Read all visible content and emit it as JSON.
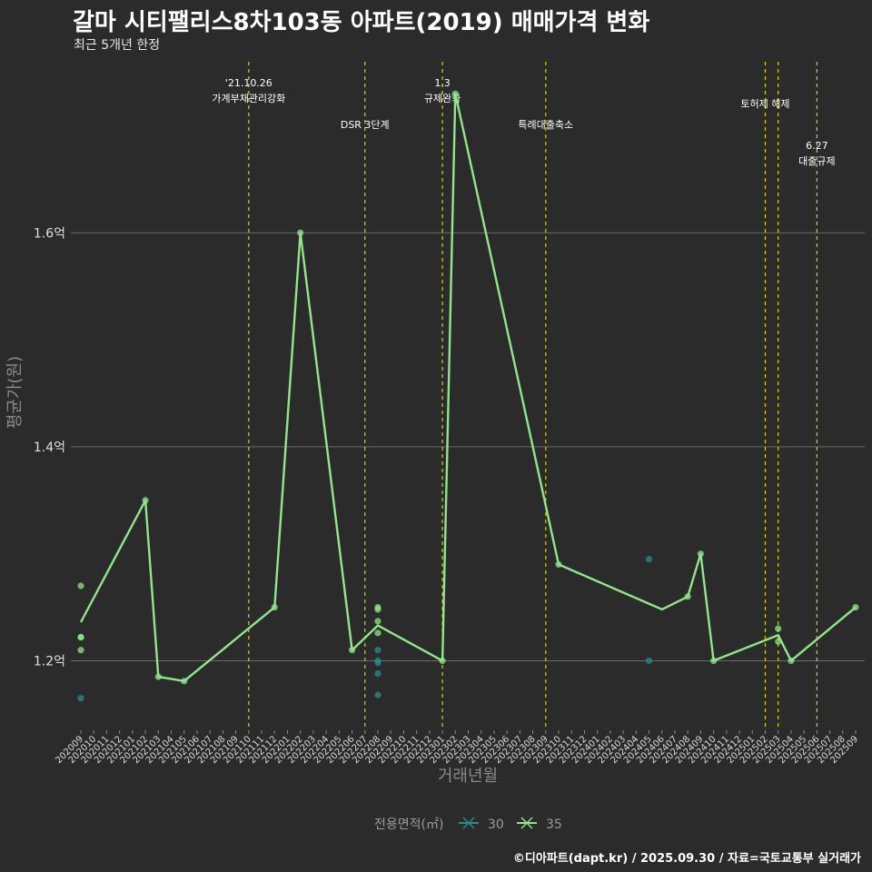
{
  "title": "갈마 시티팰리스8차103동 아파트(2019) 매매가격 변화",
  "subtitle": "최근 5개년 한정",
  "caption": "©디아파트(dapt.kr) / 2025.09.30 / 자료=국토교통부 실거래가",
  "chart_data": {
    "type": "line",
    "xlabel": "거래년월",
    "ylabel": "평균가(원)",
    "ylim": [
      1.135,
      1.765
    ],
    "y_ticks": [
      1.2,
      1.4,
      1.6
    ],
    "y_tick_labels": [
      "1.2억",
      "1.4억",
      "1.6억"
    ],
    "categories": [
      "202009",
      "202010",
      "202011",
      "202012",
      "202101",
      "202102",
      "202103",
      "202104",
      "202105",
      "202106",
      "202107",
      "202108",
      "202109",
      "202110",
      "202111",
      "202112",
      "202201",
      "202202",
      "202203",
      "202204",
      "202205",
      "202206",
      "202207",
      "202208",
      "202209",
      "202210",
      "202211",
      "202212",
      "202301",
      "202302",
      "202303",
      "202304",
      "202305",
      "202306",
      "202307",
      "202308",
      "202309",
      "202310",
      "202311",
      "202312",
      "202401",
      "202402",
      "202403",
      "202404",
      "202405",
      "202406",
      "202407",
      "202408",
      "202409",
      "202410",
      "202411",
      "202412",
      "202501",
      "202502",
      "202503",
      "202504",
      "202505",
      "202506",
      "202507",
      "202508",
      "202509"
    ],
    "legend_title": "전용면적(㎡)",
    "series": [
      {
        "name": "30",
        "color": "#2a8c8c",
        "points": [
          [
            "202009",
            1.165
          ],
          [
            "202208",
            1.21
          ],
          [
            "202208",
            1.2
          ],
          [
            "202208",
            1.198
          ],
          [
            "202208",
            1.188
          ],
          [
            "202208",
            1.168
          ],
          [
            "202405",
            1.295
          ],
          [
            "202405",
            1.2
          ]
        ],
        "line": []
      },
      {
        "name": "35",
        "color": "#90e68a",
        "points": [
          [
            "202009",
            1.27
          ],
          [
            "202009",
            1.222
          ],
          [
            "202009",
            1.222
          ],
          [
            "202009",
            1.21
          ],
          [
            "202102",
            1.35
          ],
          [
            "202103",
            1.185
          ],
          [
            "202105",
            1.181
          ],
          [
            "202112",
            1.25
          ],
          [
            "202202",
            1.6
          ],
          [
            "202206",
            1.21
          ],
          [
            "202208",
            1.25
          ],
          [
            "202208",
            1.248
          ],
          [
            "202208",
            1.237
          ],
          [
            "202208",
            1.226
          ],
          [
            "202301",
            1.2
          ],
          [
            "202302",
            1.73
          ],
          [
            "202310",
            1.29
          ],
          [
            "202408",
            1.26
          ],
          [
            "202409",
            1.3
          ],
          [
            "202410",
            1.2
          ],
          [
            "202503",
            1.23
          ],
          [
            "202503",
            1.218
          ],
          [
            "202504",
            1.2
          ],
          [
            "202509",
            1.25
          ]
        ],
        "line": [
          [
            "202009",
            1.236
          ],
          [
            "202102",
            1.35
          ],
          [
            "202103",
            1.185
          ],
          [
            "202105",
            1.181
          ],
          [
            "202112",
            1.25
          ],
          [
            "202202",
            1.6
          ],
          [
            "202206",
            1.21
          ],
          [
            "202208",
            1.233
          ],
          [
            "202301",
            1.2
          ],
          [
            "202302",
            1.73
          ],
          [
            "202310",
            1.29
          ],
          [
            "202406",
            1.248
          ],
          [
            "202408",
            1.26
          ],
          [
            "202409",
            1.3
          ],
          [
            "202410",
            1.2
          ],
          [
            "202503",
            1.224
          ],
          [
            "202504",
            1.2
          ],
          [
            "202509",
            1.25
          ]
        ]
      }
    ],
    "events": [
      {
        "x": "202110",
        "label": [
          "'21.10.26",
          "가계부채관리강화"
        ],
        "level": 0
      },
      {
        "x": "202207",
        "label": [
          "DSR 3단계"
        ],
        "level": 1
      },
      {
        "x": "202301",
        "label": [
          "1.3",
          "규제완화"
        ],
        "level": 0
      },
      {
        "x": "202309",
        "label": [
          "특례대출축소"
        ],
        "level": 1
      },
      {
        "x": "202502",
        "label": [
          "토허제 해제"
        ],
        "level": 0.5
      },
      {
        "x": "202503",
        "label": [],
        "level": 0
      },
      {
        "x": "202506",
        "label": [
          "6.27",
          "대출규제"
        ],
        "level": 1.5
      }
    ],
    "grid": true,
    "legend_position": "bottom"
  }
}
